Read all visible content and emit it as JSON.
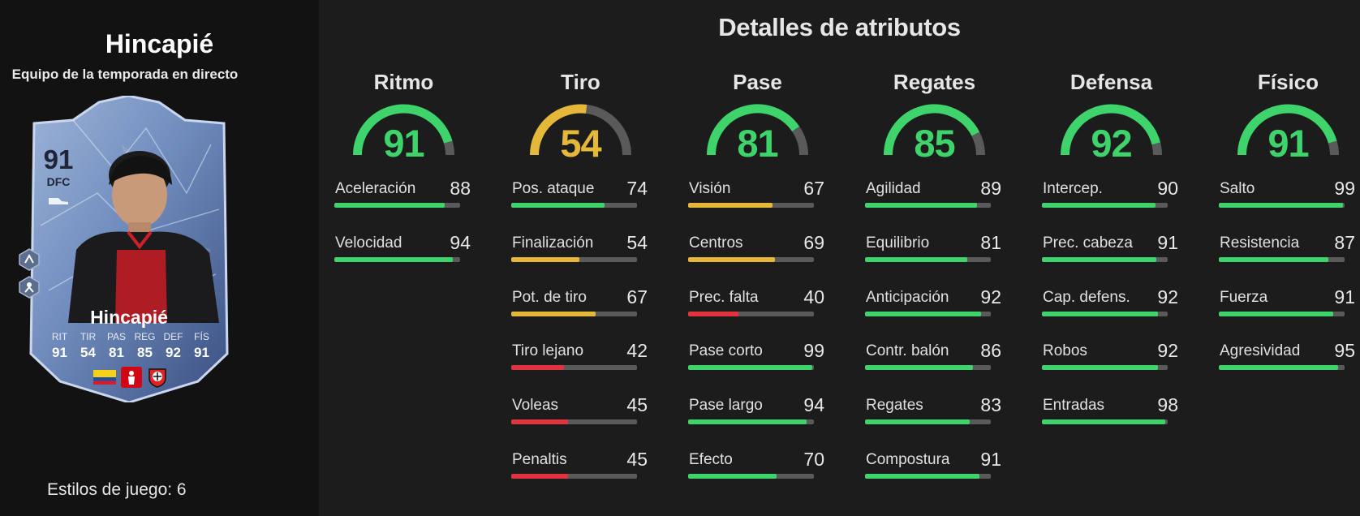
{
  "player": {
    "name": "Hincapié",
    "subtitle": "Equipo de la temporada en directo",
    "playstyles_text": "Estilos de juego: 6"
  },
  "card": {
    "rating": "91",
    "position": "DFC",
    "name": "Hincapié",
    "stats": [
      {
        "label": "RIT",
        "value": "91"
      },
      {
        "label": "TIR",
        "value": "54"
      },
      {
        "label": "PAS",
        "value": "81"
      },
      {
        "label": "REG",
        "value": "85"
      },
      {
        "label": "DEF",
        "value": "92"
      },
      {
        "label": "FÍS",
        "value": "91"
      }
    ],
    "icons": [
      "ecuador-flag-icon",
      "bundesliga-icon",
      "bayer-leverkusen-crest-icon"
    ]
  },
  "section_title": "Detalles de atributos",
  "colors": {
    "high": "#3ed36b",
    "mid": "#e6b83a",
    "low": "#e2333e",
    "track": "#5a5a5a"
  },
  "categories": [
    {
      "title": "Ritmo",
      "value": "91",
      "stats": [
        {
          "label": "Aceleración",
          "value": "88"
        },
        {
          "label": "Velocidad",
          "value": "94"
        }
      ]
    },
    {
      "title": "Tiro",
      "value": "54",
      "stats": [
        {
          "label": "Pos. ataque",
          "value": "74"
        },
        {
          "label": "Finalización",
          "value": "54"
        },
        {
          "label": "Pot. de tiro",
          "value": "67"
        },
        {
          "label": "Tiro lejano",
          "value": "42"
        },
        {
          "label": "Voleas",
          "value": "45"
        },
        {
          "label": "Penaltis",
          "value": "45"
        }
      ]
    },
    {
      "title": "Pase",
      "value": "81",
      "stats": [
        {
          "label": "Visión",
          "value": "67"
        },
        {
          "label": "Centros",
          "value": "69"
        },
        {
          "label": "Prec. falta",
          "value": "40"
        },
        {
          "label": "Pase corto",
          "value": "99"
        },
        {
          "label": "Pase largo",
          "value": "94"
        },
        {
          "label": "Efecto",
          "value": "70"
        }
      ]
    },
    {
      "title": "Regates",
      "value": "85",
      "stats": [
        {
          "label": "Agilidad",
          "value": "89"
        },
        {
          "label": "Equilibrio",
          "value": "81"
        },
        {
          "label": "Anticipación",
          "value": "92"
        },
        {
          "label": "Contr. balón",
          "value": "86"
        },
        {
          "label": "Regates",
          "value": "83"
        },
        {
          "label": "Compostura",
          "value": "91"
        }
      ]
    },
    {
      "title": "Defensa",
      "value": "92",
      "stats": [
        {
          "label": "Intercep.",
          "value": "90"
        },
        {
          "label": "Prec. cabeza",
          "value": "91"
        },
        {
          "label": "Cap. defens.",
          "value": "92"
        },
        {
          "label": "Robos",
          "value": "92"
        },
        {
          "label": "Entradas",
          "value": "98"
        }
      ]
    },
    {
      "title": "Físico",
      "value": "91",
      "stats": [
        {
          "label": "Salto",
          "value": "99"
        },
        {
          "label": "Resistencia",
          "value": "87"
        },
        {
          "label": "Fuerza",
          "value": "91"
        },
        {
          "label": "Agresividad",
          "value": "95"
        }
      ]
    }
  ]
}
